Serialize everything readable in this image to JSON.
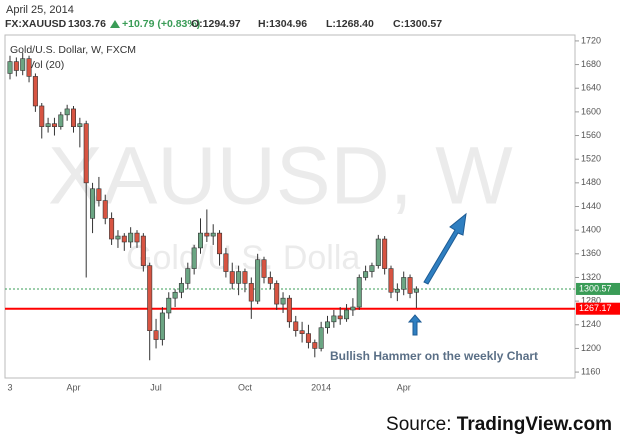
{
  "header": {
    "date": "April 25, 2014",
    "symbol": "FX:XAUUSD",
    "price": "1303.76",
    "change": "+10.79 (+0.83%)",
    "open": "O:1294.97",
    "high": "H:1304.96",
    "low": "L:1268.40",
    "close": "C:1300.57"
  },
  "chart_data": {
    "type": "candlestick",
    "title": "Gold/U.S. Dollar, W, FXCM",
    "subtitle": "Vol (20)",
    "watermark": "XAUUSD, W",
    "watermark_sub": "Gold/U.S. Dolla",
    "categories": [
      "3",
      null,
      null,
      null,
      null,
      null,
      null,
      null,
      null,
      null,
      "Apr",
      null,
      null,
      null,
      null,
      null,
      null,
      null,
      null,
      null,
      null,
      null,
      null,
      "Jul",
      null,
      null,
      null,
      null,
      null,
      null,
      null,
      null,
      null,
      null,
      null,
      null,
      null,
      "Oct",
      null,
      null,
      null,
      null,
      null,
      null,
      null,
      null,
      null,
      null,
      null,
      "2014",
      null,
      null,
      null,
      null,
      null,
      null,
      null,
      null,
      null,
      null,
      null,
      null,
      "Apr",
      null,
      null
    ],
    "open": [
      1665,
      1685,
      1670,
      1690,
      1660,
      1610,
      1575,
      1580,
      1575,
      1595,
      1605,
      1575,
      1580,
      1420,
      1470,
      1450,
      1420,
      1385,
      1390,
      1380,
      1395,
      1390,
      1340,
      1230,
      1215,
      1260,
      1285,
      1295,
      1310,
      1335,
      1370,
      1395,
      1390,
      1395,
      1360,
      1330,
      1310,
      1330,
      1310,
      1280,
      1350,
      1320,
      1310,
      1275,
      1285,
      1245,
      1230,
      1225,
      1210,
      1200,
      1235,
      1245,
      1255,
      1250,
      1265,
      1270,
      1320,
      1330,
      1340,
      1385,
      1335,
      1295,
      1300,
      1320,
      1294.97
    ],
    "high": [
      1695,
      1692,
      1700,
      1695,
      1665,
      1615,
      1590,
      1590,
      1600,
      1612,
      1610,
      1590,
      1585,
      1480,
      1490,
      1460,
      1430,
      1400,
      1395,
      1405,
      1400,
      1395,
      1345,
      1250,
      1270,
      1295,
      1300,
      1320,
      1345,
      1375,
      1420,
      1435,
      1410,
      1400,
      1370,
      1345,
      1340,
      1335,
      1320,
      1360,
      1355,
      1330,
      1315,
      1295,
      1290,
      1255,
      1245,
      1240,
      1215,
      1245,
      1255,
      1265,
      1270,
      1275,
      1285,
      1325,
      1340,
      1345,
      1392,
      1390,
      1340,
      1310,
      1330,
      1325,
      1304.96
    ],
    "low": [
      1655,
      1660,
      1662,
      1650,
      1600,
      1555,
      1565,
      1560,
      1570,
      1585,
      1565,
      1540,
      1320,
      1395,
      1440,
      1410,
      1375,
      1370,
      1365,
      1370,
      1370,
      1330,
      1180,
      1200,
      1205,
      1250,
      1270,
      1285,
      1300,
      1325,
      1360,
      1380,
      1375,
      1340,
      1320,
      1300,
      1290,
      1295,
      1250,
      1275,
      1310,
      1300,
      1265,
      1260,
      1235,
      1220,
      1210,
      1200,
      1185,
      1195,
      1225,
      1235,
      1240,
      1245,
      1255,
      1265,
      1315,
      1320,
      1335,
      1325,
      1285,
      1280,
      1290,
      1285,
      1268.4
    ],
    "close": [
      1685,
      1670,
      1690,
      1660,
      1610,
      1575,
      1580,
      1575,
      1595,
      1605,
      1575,
      1580,
      1480,
      1470,
      1450,
      1420,
      1385,
      1390,
      1380,
      1395,
      1380,
      1340,
      1230,
      1215,
      1260,
      1285,
      1295,
      1310,
      1335,
      1370,
      1395,
      1390,
      1395,
      1360,
      1330,
      1310,
      1330,
      1310,
      1280,
      1350,
      1320,
      1310,
      1275,
      1285,
      1245,
      1230,
      1225,
      1210,
      1200,
      1235,
      1245,
      1255,
      1250,
      1265,
      1270,
      1320,
      1330,
      1340,
      1385,
      1335,
      1295,
      1300,
      1320,
      1293,
      1300.57
    ],
    "up_color": "#6ba583",
    "down_color": "#d75442",
    "ylim": [
      1150,
      1730
    ],
    "yticks": [
      1160,
      1200,
      1240,
      1280,
      1320,
      1360,
      1400,
      1440,
      1480,
      1520,
      1560,
      1600,
      1640,
      1680,
      1720
    ],
    "reference_lines": [
      {
        "value": 1300.57,
        "color": "#3a9c57",
        "style": "dotted"
      },
      {
        "value": 1267.17,
        "color": "#ff0000",
        "style": "solid"
      }
    ],
    "annotation": "Bullish Hammer on the weekly Chart",
    "source_label": "Source:",
    "source": "TradingView.com"
  }
}
